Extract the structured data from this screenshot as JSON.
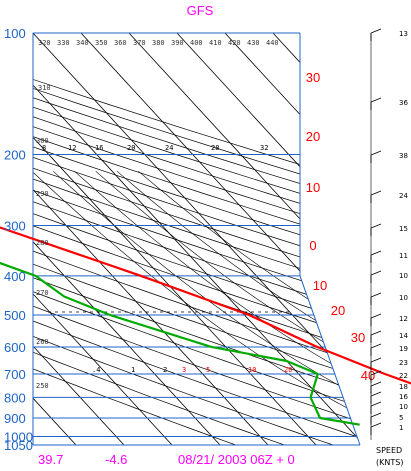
{
  "chart_data": {
    "type": "skew-t",
    "title": "GFS",
    "pressure_levels": [
      100,
      200,
      300,
      400,
      500,
      600,
      700,
      800,
      900,
      1000,
      1050
    ],
    "pressure_labels": [
      "100",
      "200",
      "300",
      "400",
      "500",
      "600",
      "700",
      "800",
      "900",
      "1000",
      "1050"
    ],
    "top_temp_labels": [
      "-100",
      "-90",
      "-80",
      "-70",
      "-60",
      "-50",
      "-40"
    ],
    "top_temp_values": [
      -100,
      -90,
      -80,
      -70,
      -60,
      -50,
      -40
    ],
    "right_temp_labels": [
      "30",
      "20",
      "10",
      "0",
      "10",
      "20",
      "30",
      "40"
    ],
    "right_temp_values": [
      30,
      20,
      10,
      0,
      -10,
      -20,
      -30,
      -40
    ],
    "theta_labels": [
      "320",
      "330",
      "340",
      "350",
      "360",
      "370",
      "380",
      "390",
      "400",
      "410",
      "420",
      "430",
      "440",
      "310",
      "300",
      "290",
      "280",
      "270",
      "260",
      "250"
    ],
    "mixing_ratio_labels": [
      "8",
      "12",
      "16",
      "20",
      "24",
      "28",
      "32"
    ],
    "mixing_ratio_labels_low": [
      ".4",
      "1",
      "2",
      "3",
      "5",
      "10",
      "20"
    ],
    "temperature_profile": {
      "color": "#ff0000",
      "points": [
        {
          "p": 100,
          "t": -67
        },
        {
          "p": 150,
          "t": -70
        },
        {
          "p": 200,
          "t": -68
        },
        {
          "p": 250,
          "t": -58
        },
        {
          "p": 300,
          "t": -45
        },
        {
          "p": 400,
          "t": -24
        },
        {
          "p": 500,
          "t": -9
        },
        {
          "p": 600,
          "t": -1
        },
        {
          "p": 700,
          "t": 8
        },
        {
          "p": 800,
          "t": 17
        },
        {
          "p": 850,
          "t": 22
        },
        {
          "p": 880,
          "t": 27
        },
        {
          "p": 920,
          "t": 26
        },
        {
          "p": 935,
          "t": 24
        }
      ]
    },
    "dewpoint_profile": {
      "color": "#00aa00",
      "points": [
        {
          "p": 100,
          "t": -84
        },
        {
          "p": 130,
          "t": -92
        },
        {
          "p": 160,
          "t": -92
        },
        {
          "p": 200,
          "t": -78
        },
        {
          "p": 250,
          "t": -67
        },
        {
          "p": 300,
          "t": -60
        },
        {
          "p": 350,
          "t": -55
        },
        {
          "p": 400,
          "t": -46
        },
        {
          "p": 450,
          "t": -44
        },
        {
          "p": 500,
          "t": -38
        },
        {
          "p": 600,
          "t": -23
        },
        {
          "p": 650,
          "t": -10
        },
        {
          "p": 700,
          "t": -6
        },
        {
          "p": 800,
          "t": -12
        },
        {
          "p": 900,
          "t": -14
        },
        {
          "p": 935,
          "t": -7
        }
      ]
    },
    "wind_speed_labels": [
      "13",
      "36",
      "38",
      "24",
      "15",
      "11",
      "10",
      "10",
      "12",
      "14",
      "19",
      "23",
      "22",
      "18",
      "16",
      "10",
      "5",
      "1"
    ],
    "wind_speed_title": "SPEED",
    "wind_speed_units": "(KNTS)",
    "footer": {
      "left_value": "39.7",
      "second_value": "-4.6",
      "date_time": "08/21/ 2003 06Z + 0"
    },
    "colors": {
      "isobar": "#1e64c8",
      "isotherm": "#000000",
      "temp_label": "#ff0000",
      "title": "#ff00ff",
      "temperature": "#ff0000",
      "dewpoint": "#00aa00"
    }
  }
}
